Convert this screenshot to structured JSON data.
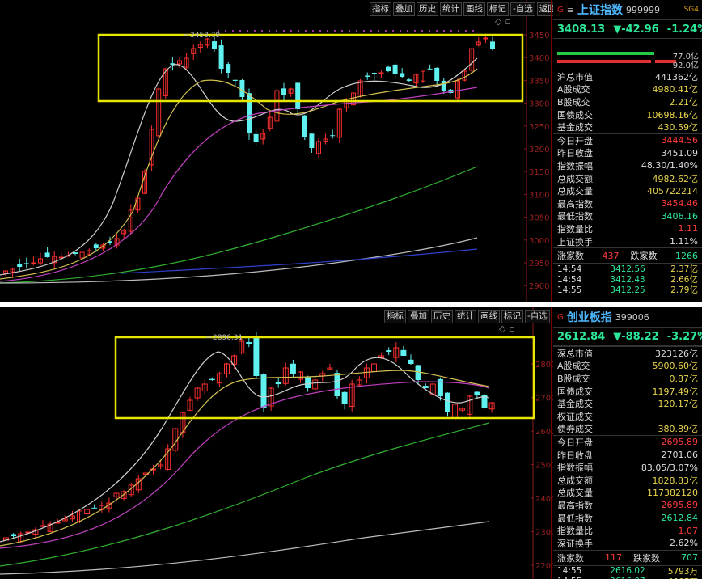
{
  "toolbar": {
    "buttons": [
      "指标",
      "叠加",
      "历史",
      "统计",
      "画线",
      "标记",
      "-自选",
      "返回"
    ],
    "icons": [
      "square-icon",
      "diamond-icon",
      "expand-icon"
    ]
  },
  "top": {
    "index_name": "上证指数",
    "index_code": "999999",
    "sg_label": "SG4",
    "price": "3408.13",
    "change": "▼-42.96",
    "change_pct": "-1.24%",
    "bar_labels": [
      "77.0亿",
      "92.0亿"
    ],
    "peak_label": "3458.79",
    "y_ticks": [
      "3450",
      "3400",
      "3350",
      "3300",
      "3250",
      "3200",
      "3150",
      "3100",
      "3050",
      "3000",
      "2950",
      "2900"
    ],
    "stats": [
      {
        "label": "沪总市值",
        "value": "441362亿",
        "color": "white"
      },
      {
        "label": "A股成交",
        "value": "4980.41亿",
        "color": "yellow"
      },
      {
        "label": "B股成交",
        "value": "2.21亿",
        "color": "yellow"
      },
      {
        "label": "国债成交",
        "value": "10698.16亿",
        "color": "yellow"
      },
      {
        "label": "基金成交",
        "value": "430.59亿",
        "color": "yellow"
      },
      {
        "label": "今日开盘",
        "value": "3444.56",
        "color": "red"
      },
      {
        "label": "昨日收盘",
        "value": "3451.09",
        "color": "white"
      },
      {
        "label": "指数振幅",
        "value": "48.30/1.40%",
        "color": "white"
      },
      {
        "label": "总成交额",
        "value": "4982.62亿",
        "color": "yellow"
      },
      {
        "label": "总成交量",
        "value": "405722214",
        "color": "yellow"
      },
      {
        "label": "最高指数",
        "value": "3454.46",
        "color": "red"
      },
      {
        "label": "最低指数",
        "value": "3406.16",
        "color": "green"
      },
      {
        "label": "指数量比",
        "value": "1.11",
        "color": "red"
      },
      {
        "label": "上证换手",
        "value": "1.11%",
        "color": "white"
      }
    ],
    "up_label": "涨家数",
    "up_count": "437",
    "down_label": "跌家数",
    "down_count": "1266",
    "ticks": [
      {
        "time": "14:54",
        "price": "3412.56",
        "amount": "2.37亿"
      },
      {
        "time": "14:54",
        "price": "3412.43",
        "amount": "2.66亿"
      },
      {
        "time": "14:55",
        "price": "3412.25",
        "amount": "2.79亿"
      }
    ]
  },
  "bottom": {
    "index_name": "创业板指",
    "index_code": "399006",
    "price": "2612.84",
    "change": "▼-88.22",
    "change_pct": "-3.27%",
    "peak_label": "2896.31",
    "y_ticks": [
      "2800",
      "2700",
      "2600",
      "2500",
      "2400",
      "2300",
      "2200",
      "2100"
    ],
    "stats": [
      {
        "label": "深总市值",
        "value": "323126亿",
        "color": "white"
      },
      {
        "label": "A股成交",
        "value": "5900.60亿",
        "color": "yellow"
      },
      {
        "label": "B股成交",
        "value": "0.87亿",
        "color": "yellow"
      },
      {
        "label": "国债成交",
        "value": "1197.49亿",
        "color": "yellow"
      },
      {
        "label": "基金成交",
        "value": "120.17亿",
        "color": "yellow"
      },
      {
        "label": "权证成交",
        "value": "",
        "color": "yellow"
      },
      {
        "label": "债券成交",
        "value": "380.89亿",
        "color": "yellow"
      },
      {
        "label": "今日开盘",
        "value": "2695.89",
        "color": "red"
      },
      {
        "label": "昨日收盘",
        "value": "2701.06",
        "color": "white"
      },
      {
        "label": "指数振幅",
        "value": "83.05/3.07%",
        "color": "white"
      },
      {
        "label": "总成交额",
        "value": "1828.83亿",
        "color": "yellow"
      },
      {
        "label": "总成交量",
        "value": "117382120",
        "color": "yellow"
      },
      {
        "label": "最高指数",
        "value": "2695.89",
        "color": "red"
      },
      {
        "label": "最低指数",
        "value": "2612.84",
        "color": "green"
      },
      {
        "label": "指数量比",
        "value": "1.07",
        "color": "red"
      },
      {
        "label": "深证换手",
        "value": "2.62%",
        "color": "white"
      }
    ],
    "up_label": "涨家数",
    "up_count": "117",
    "down_label": "跌家数",
    "down_count": "707",
    "ticks": [
      {
        "time": "14:55",
        "price": "2616.02",
        "amount": "5793万"
      },
      {
        "time": "14:55",
        "price": "2616.07",
        "amount": "4907万"
      }
    ]
  },
  "colors": {
    "up": "#ff3030",
    "down": "#5ff0f0",
    "highlight": "#e6e600"
  }
}
